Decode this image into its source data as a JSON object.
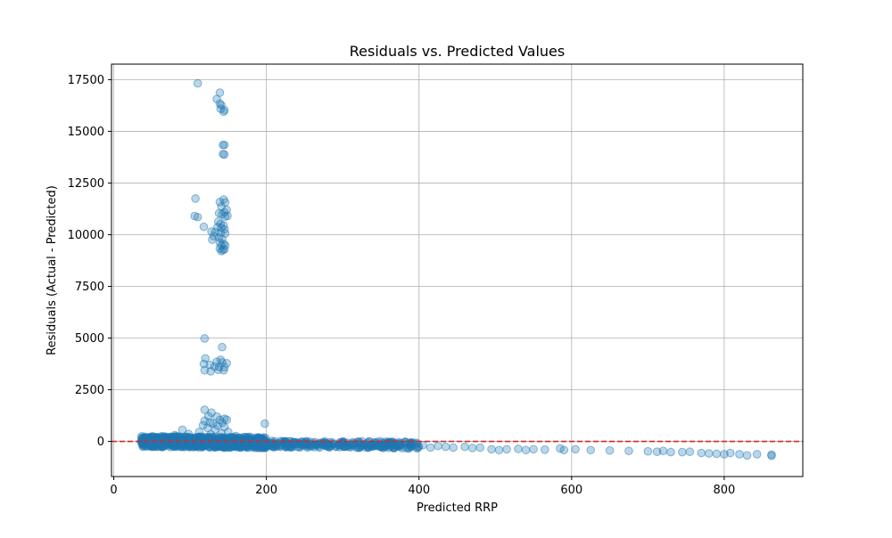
{
  "chart_data": {
    "type": "scatter",
    "title": "Residuals vs. Predicted Values",
    "xlabel": "Predicted RRP",
    "ylabel": "Residuals (Actual - Predicted)",
    "xlim": [
      -3,
      903
    ],
    "ylim": [
      -1700,
      18250
    ],
    "xticks": [
      0,
      200,
      400,
      600,
      800
    ],
    "yticks": [
      0,
      2500,
      5000,
      7500,
      10000,
      12500,
      15000,
      17500
    ],
    "grid": true,
    "colors": {
      "points": "#1f77b4",
      "reference_line": "#d62728"
    },
    "reference_line": {
      "y": 0,
      "style": "dashed"
    },
    "points": [
      [
        110,
        17320
      ],
      [
        139,
        16870
      ],
      [
        135,
        16560
      ],
      [
        139,
        16340
      ],
      [
        141,
        16260
      ],
      [
        140,
        16090
      ],
      [
        144,
        15950
      ],
      [
        145,
        16030
      ],
      [
        143,
        14340
      ],
      [
        145,
        14340
      ],
      [
        143,
        13900
      ],
      [
        145,
        13880
      ],
      [
        107,
        11750
      ],
      [
        144,
        11700
      ],
      [
        139,
        11580
      ],
      [
        146,
        11560
      ],
      [
        141,
        11360
      ],
      [
        148,
        11200
      ],
      [
        145,
        11080
      ],
      [
        138,
        11040
      ],
      [
        142,
        10990
      ],
      [
        146,
        10880
      ],
      [
        149,
        10910
      ],
      [
        106,
        10900
      ],
      [
        110,
        10850
      ],
      [
        137,
        10630
      ],
      [
        140,
        10520
      ],
      [
        144,
        10450
      ],
      [
        136,
        10370
      ],
      [
        141,
        10330
      ],
      [
        145,
        10250
      ],
      [
        118,
        10380
      ],
      [
        128,
        10150
      ],
      [
        133,
        10120
      ],
      [
        140,
        10100
      ],
      [
        146,
        10060
      ],
      [
        131,
        9930
      ],
      [
        138,
        9870
      ],
      [
        129,
        9760
      ],
      [
        142,
        9800
      ],
      [
        139,
        9620
      ],
      [
        144,
        9550
      ],
      [
        141,
        9480
      ],
      [
        146,
        9480
      ],
      [
        139,
        9330
      ],
      [
        143,
        9260
      ],
      [
        141,
        9210
      ],
      [
        145,
        9290
      ],
      [
        119,
        4980
      ],
      [
        142,
        4560
      ],
      [
        120,
        4020
      ],
      [
        140,
        3950
      ],
      [
        135,
        3850
      ],
      [
        142,
        3820
      ],
      [
        148,
        3780
      ],
      [
        118,
        3750
      ],
      [
        126,
        3700
      ],
      [
        132,
        3620
      ],
      [
        138,
        3600
      ],
      [
        145,
        3590
      ],
      [
        119,
        3440
      ],
      [
        127,
        3390
      ],
      [
        137,
        3460
      ],
      [
        144,
        3440
      ],
      [
        119,
        1530
      ],
      [
        128,
        1390
      ],
      [
        124,
        1220
      ],
      [
        135,
        1200
      ],
      [
        145,
        1100
      ],
      [
        119,
        1000
      ],
      [
        139,
        1040
      ],
      [
        148,
        1050
      ],
      [
        126,
        920
      ],
      [
        142,
        900
      ],
      [
        198,
        860
      ],
      [
        130,
        860
      ],
      [
        117,
        780
      ],
      [
        136,
        760
      ],
      [
        123,
        650
      ],
      [
        145,
        700
      ],
      [
        90,
        560
      ],
      [
        133,
        580
      ],
      [
        112,
        460
      ],
      [
        150,
        460
      ],
      [
        98,
        360
      ],
      [
        80,
        300
      ],
      [
        127,
        340
      ],
      [
        141,
        380
      ],
      [
        160,
        260
      ],
      [
        118,
        220
      ],
      [
        178,
        220
      ],
      [
        70,
        180
      ],
      [
        103,
        160
      ],
      [
        138,
        180
      ],
      [
        190,
        140
      ],
      [
        40,
        60
      ],
      [
        45,
        20
      ],
      [
        50,
        80
      ],
      [
        55,
        -40
      ],
      [
        60,
        40
      ],
      [
        65,
        -20
      ],
      [
        75,
        60
      ],
      [
        85,
        -60
      ],
      [
        95,
        40
      ],
      [
        105,
        -80
      ],
      [
        115,
        20
      ],
      [
        125,
        -100
      ],
      [
        135,
        60
      ],
      [
        145,
        -60
      ],
      [
        155,
        -100
      ],
      [
        165,
        -140
      ],
      [
        175,
        -60
      ],
      [
        185,
        -120
      ],
      [
        195,
        -80
      ],
      [
        205,
        -60
      ],
      [
        215,
        -140
      ],
      [
        225,
        -80
      ],
      [
        235,
        -120
      ],
      [
        245,
        -160
      ],
      [
        255,
        -120
      ],
      [
        265,
        -180
      ],
      [
        275,
        -140
      ],
      [
        285,
        -200
      ],
      [
        295,
        -160
      ],
      [
        305,
        -220
      ],
      [
        315,
        -180
      ],
      [
        325,
        -200
      ],
      [
        340,
        -240
      ],
      [
        350,
        -260
      ],
      [
        362,
        -240
      ],
      [
        375,
        -260
      ],
      [
        385,
        -220
      ],
      [
        405,
        -180
      ],
      [
        415,
        -300
      ],
      [
        425,
        -220
      ],
      [
        435,
        -260
      ],
      [
        445,
        -300
      ],
      [
        460,
        -260
      ],
      [
        470,
        -320
      ],
      [
        480,
        -300
      ],
      [
        495,
        -380
      ],
      [
        505,
        -420
      ],
      [
        515,
        -380
      ],
      [
        530,
        -360
      ],
      [
        540,
        -420
      ],
      [
        550,
        -380
      ],
      [
        565,
        -400
      ],
      [
        585,
        -340
      ],
      [
        590,
        -420
      ],
      [
        605,
        -380
      ],
      [
        625,
        -420
      ],
      [
        650,
        -440
      ],
      [
        675,
        -460
      ],
      [
        700,
        -480
      ],
      [
        712,
        -500
      ],
      [
        720,
        -460
      ],
      [
        730,
        -520
      ],
      [
        745,
        -520
      ],
      [
        755,
        -500
      ],
      [
        770,
        -560
      ],
      [
        780,
        -580
      ],
      [
        790,
        -600
      ],
      [
        800,
        -620
      ],
      [
        808,
        -560
      ],
      [
        820,
        -620
      ],
      [
        830,
        -680
      ],
      [
        843,
        -620
      ],
      [
        862,
        -640
      ],
      [
        862,
        -700
      ]
    ],
    "bands": [
      {
        "x_from": 36,
        "x_to": 200,
        "y_center": 0,
        "y_spread": 260,
        "count": 700
      },
      {
        "x_from": 200,
        "x_to": 400,
        "y_center": -120,
        "y_spread": 160,
        "count": 260
      }
    ]
  }
}
